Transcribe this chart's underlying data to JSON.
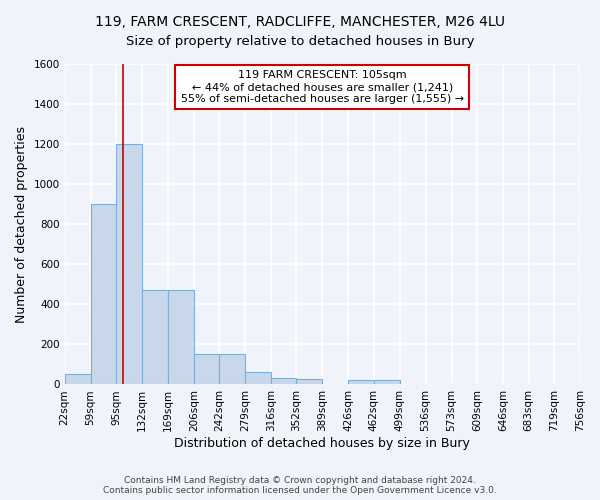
{
  "title": "119, FARM CRESCENT, RADCLIFFE, MANCHESTER, M26 4LU",
  "subtitle": "Size of property relative to detached houses in Bury",
  "xlabel": "Distribution of detached houses by size in Bury",
  "ylabel": "Number of detached properties",
  "bin_edges": [
    22,
    59,
    95,
    132,
    169,
    206,
    242,
    279,
    316,
    352,
    389,
    426,
    462,
    499,
    536,
    573,
    609,
    646,
    683,
    719,
    756
  ],
  "bin_labels": [
    "22sqm",
    "59sqm",
    "95sqm",
    "132sqm",
    "169sqm",
    "206sqm",
    "242sqm",
    "279sqm",
    "316sqm",
    "352sqm",
    "389sqm",
    "426sqm",
    "462sqm",
    "499sqm",
    "536sqm",
    "573sqm",
    "609sqm",
    "646sqm",
    "683sqm",
    "719sqm",
    "756sqm"
  ],
  "bar_heights": [
    50,
    900,
    1200,
    470,
    470,
    150,
    150,
    60,
    30,
    25,
    0,
    20,
    20,
    0,
    0,
    0,
    0,
    0,
    0,
    0
  ],
  "bar_color": "#c8d8ea",
  "bar_edge_color": "#7bafd4",
  "vline_x": 105,
  "vline_color": "#cc0000",
  "ylim": [
    0,
    1600
  ],
  "yticks": [
    0,
    200,
    400,
    600,
    800,
    1000,
    1200,
    1400,
    1600
  ],
  "annotation_text": "119 FARM CRESCENT: 105sqm\n← 44% of detached houses are smaller (1,241)\n55% of semi-detached houses are larger (1,555) →",
  "annotation_box_color": "#ffffff",
  "annotation_box_edge_color": "#cc0000",
  "bg_color": "#f0f4fa",
  "plot_bg_color": "#f0f4fa",
  "grid_color": "#ffffff",
  "footer_line1": "Contains HM Land Registry data © Crown copyright and database right 2024.",
  "footer_line2": "Contains public sector information licensed under the Open Government Licence v3.0.",
  "title_fontsize": 10,
  "subtitle_fontsize": 9.5,
  "label_fontsize": 9,
  "tick_fontsize": 7.5,
  "annotation_fontsize": 8
}
